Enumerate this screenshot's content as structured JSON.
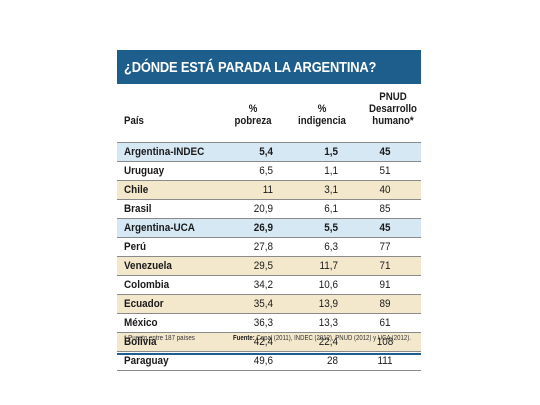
{
  "title": "¿DÓNDE ESTÁ PARADA LA ARGENTINA?",
  "table": {
    "headers": {
      "pais": "País",
      "pobreza": "%\npobreza",
      "indigencia": "%\nindigencia",
      "pnud": "PNUD\nDesarrollo\nhumano*"
    },
    "rows": [
      {
        "pais": "Argentina-INDEC",
        "pobreza": "5,4",
        "indigencia": "1,5",
        "pnud": "45"
      },
      {
        "pais": "Uruguay",
        "pobreza": "6,5",
        "indigencia": "1,1",
        "pnud": "51"
      },
      {
        "pais": "Chile",
        "pobreza": "11",
        "indigencia": "3,1",
        "pnud": "40"
      },
      {
        "pais": "Brasil",
        "pobreza": "20,9",
        "indigencia": "6,1",
        "pnud": "85"
      },
      {
        "pais": "Argentina-UCA",
        "pobreza": "26,9",
        "indigencia": "5,5",
        "pnud": "45"
      },
      {
        "pais": "Perú",
        "pobreza": "27,8",
        "indigencia": "6,3",
        "pnud": "77"
      },
      {
        "pais": "Venezuela",
        "pobreza": "29,5",
        "indigencia": "11,7",
        "pnud": "71"
      },
      {
        "pais": "Colombia",
        "pobreza": "34,2",
        "indigencia": "10,6",
        "pnud": "91"
      },
      {
        "pais": "Ecuador",
        "pobreza": "35,4",
        "indigencia": "13,9",
        "pnud": "89"
      },
      {
        "pais": "México",
        "pobreza": "36,3",
        "indigencia": "13,3",
        "pnud": "61"
      },
      {
        "pais": "Bolivia",
        "pobreza": "42,4",
        "indigencia": "22,4",
        "pnud": "108"
      },
      {
        "pais": "Paraguay",
        "pobreza": "49,6",
        "indigencia": "28",
        "pnud": "111"
      }
    ]
  },
  "footnote": "* Puesto entre 187 países",
  "source": {
    "label": "Fuente:",
    "text": " Cepal (2011), INDEC (2012), PNUD (2012) y UCA (2012)."
  },
  "colors": {
    "title_bar": "#1d5e8c",
    "highlight_row": "#d7e8f5",
    "alt_row": "#f3e8cc"
  }
}
